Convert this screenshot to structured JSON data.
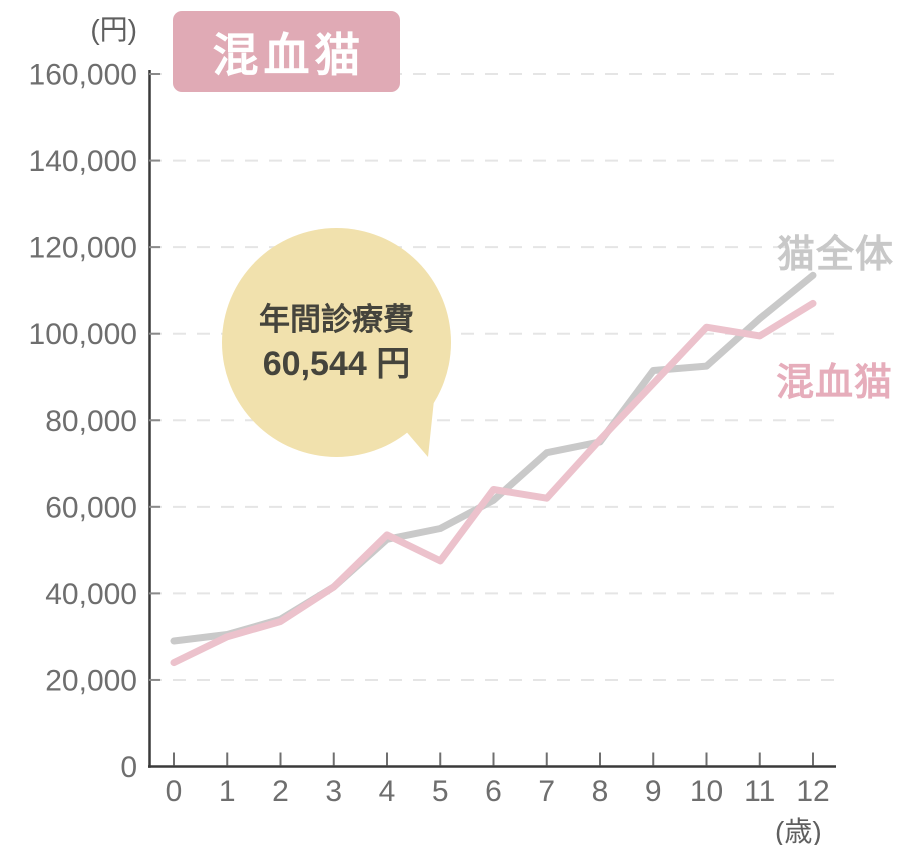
{
  "page": {
    "background": "#ffffff"
  },
  "badge": {
    "label": "混血猫",
    "bg_color": "#e0aab5",
    "text_color": "#ffffff"
  },
  "callout": {
    "line1": "年間診療費",
    "line2": "60,544 円",
    "bg_color": "#f1e1ad",
    "text_color": "#45443c"
  },
  "legend": {
    "all_cats_label": "猫全体",
    "all_cats_color": "#c8c8c8",
    "mixed_label": "混血猫",
    "mixed_color": "#e6adbb"
  },
  "axes": {
    "y_unit": "(円)",
    "x_unit": "(歳)",
    "unit_color": "#5f5f5f",
    "label_color": "#6e6e6e",
    "axis_color": "#3a3a3a",
    "grid_color": "#e5e5e5",
    "y_ticks": [
      {
        "value": 0,
        "label": "0"
      },
      {
        "value": 20000,
        "label": "20,000"
      },
      {
        "value": 40000,
        "label": "40,000"
      },
      {
        "value": 60000,
        "label": "60,000"
      },
      {
        "value": 80000,
        "label": "80,000"
      },
      {
        "value": 100000,
        "label": "100,000"
      },
      {
        "value": 120000,
        "label": "120,000"
      },
      {
        "value": 140000,
        "label": "140,000"
      },
      {
        "value": 160000,
        "label": "160,000"
      }
    ],
    "x_ticks": [
      {
        "value": 0,
        "label": "0"
      },
      {
        "value": 1,
        "label": "1"
      },
      {
        "value": 2,
        "label": "2"
      },
      {
        "value": 3,
        "label": "3"
      },
      {
        "value": 4,
        "label": "4"
      },
      {
        "value": 5,
        "label": "5"
      },
      {
        "value": 6,
        "label": "6"
      },
      {
        "value": 7,
        "label": "7"
      },
      {
        "value": 8,
        "label": "8"
      },
      {
        "value": 9,
        "label": "9"
      },
      {
        "value": 10,
        "label": "10"
      },
      {
        "value": 11,
        "label": "11"
      },
      {
        "value": 12,
        "label": "12"
      }
    ]
  },
  "chart_data": {
    "type": "line",
    "title": "混血猫",
    "xlabel": "(歳)",
    "ylabel": "(円)",
    "x": [
      0,
      1,
      2,
      3,
      4,
      5,
      6,
      7,
      8,
      9,
      10,
      11,
      12
    ],
    "xlim": [
      0,
      12
    ],
    "ylim": [
      0,
      160000
    ],
    "grid": "horizontal-dashed",
    "legend_position": "right-inline",
    "annotation": {
      "text": "年間診療費 60,544 円",
      "attached_to": "混血猫"
    },
    "series": [
      {
        "name": "猫全体",
        "color": "#c9c9c9",
        "values": [
          29000,
          30500,
          34000,
          41500,
          52500,
          55000,
          61500,
          72500,
          75000,
          91500,
          92500,
          103500,
          113500
        ]
      },
      {
        "name": "混血猫",
        "color": "#ecc2cc",
        "values": [
          24000,
          30000,
          33500,
          41500,
          53500,
          47500,
          64000,
          62000,
          75500,
          88500,
          101500,
          99500,
          107000
        ]
      }
    ]
  }
}
